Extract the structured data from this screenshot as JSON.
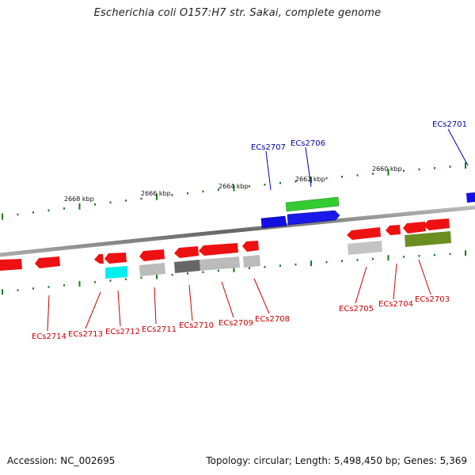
{
  "title": "Escherichia coli O157:H7 str. Sakai, complete genome",
  "footer": {
    "accession": "Accession: NC_002695",
    "stats": "Topology: circular; Length: 5,498,450 bp; Genes: 5,369"
  },
  "scale_labels": [
    "2668 kbp",
    "2666 kbp",
    "2664 kbp",
    "2662 kbp",
    "2660 kbp"
  ],
  "gene_labels_top": [
    "ECs2707",
    "ECs2706",
    "ECs2701"
  ],
  "gene_labels_bottom": [
    "ECs2714",
    "ECs2713",
    "ECs2712",
    "ECs2711",
    "ECs2710",
    "ECs2709",
    "ECs2708",
    "ECs2705",
    "ECs2704",
    "ECs2703"
  ],
  "colors": {
    "forward_cds": "#0000ff",
    "reverse_cds": "#ff0000",
    "label_forward": "#0000aa",
    "label_reverse": "#cc0000",
    "tick": "#1a7a1a",
    "backbone": "#777777"
  }
}
